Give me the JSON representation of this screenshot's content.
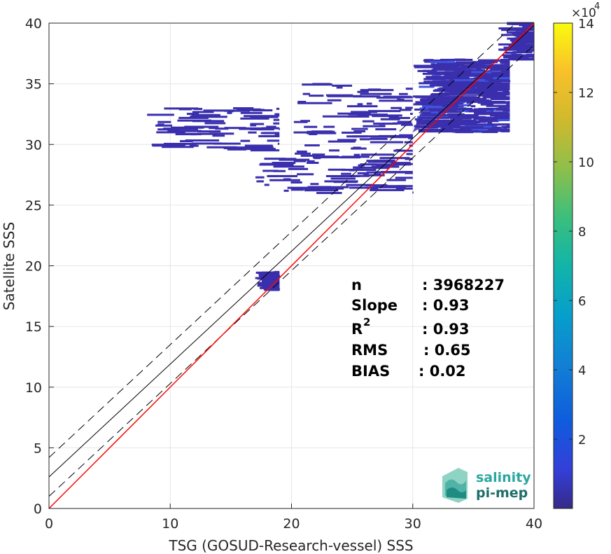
{
  "chart_data": {
    "type": "heatmap",
    "xlabel": "TSG (GOSUD-Research-vessel) SSS",
    "ylabel": "Satellite SSS",
    "xlim": [
      0,
      40
    ],
    "ylim": [
      0,
      40
    ],
    "xticks": [
      0,
      10,
      20,
      30,
      40
    ],
    "yticks": [
      0,
      5,
      10,
      15,
      20,
      25,
      30,
      35,
      40
    ],
    "grid": true,
    "colorbar": {
      "range": [
        0,
        14
      ],
      "ticks": [
        2,
        4,
        6,
        8,
        10,
        12,
        14
      ],
      "multiplier": "×10",
      "exponent": "4",
      "colormap": "parula"
    },
    "stats": [
      {
        "label": "n",
        "value": ": 3968227"
      },
      {
        "label": "Slope",
        "value": ": 0.93"
      },
      {
        "label": "R",
        "sup": "2",
        "value": ": 0.93"
      },
      {
        "label": "RMS",
        "value": ": 0.65"
      },
      {
        "label": "BIAS",
        "value": ": 0.02"
      }
    ],
    "reference_lines": {
      "identity": {
        "slope": 1,
        "intercept": 0,
        "color": "#ff0000"
      },
      "fit": {
        "slope": 0.93,
        "intercept": 2.6,
        "color": "#000000"
      },
      "fit_upper": {
        "slope": 0.93,
        "intercept": 4.2,
        "style": "dashed"
      },
      "fit_lower": {
        "slope": 0.93,
        "intercept": 1.0,
        "style": "dashed"
      }
    },
    "density_regions": [
      {
        "x": [
          30,
          38
        ],
        "y": [
          31,
          37
        ],
        "level": "dense"
      },
      {
        "x": [
          20,
          30
        ],
        "y": [
          29,
          35
        ],
        "level": "sparse"
      },
      {
        "x": [
          17,
          30
        ],
        "y": [
          26,
          29
        ],
        "level": "sparse"
      },
      {
        "x": [
          8,
          19
        ],
        "y": [
          29.5,
          33
        ],
        "level": "sparse"
      },
      {
        "x": [
          17,
          19
        ],
        "y": [
          18,
          19.5
        ],
        "level": "sparse"
      },
      {
        "x": [
          37,
          40
        ],
        "y": [
          37,
          40
        ],
        "level": "sparse"
      }
    ]
  },
  "logo": {
    "line1": "salinity",
    "line2": "pi-mep"
  },
  "colors": {
    "logo_teal": "#2aa7a0",
    "logo_dark": "#1d6e6b"
  }
}
